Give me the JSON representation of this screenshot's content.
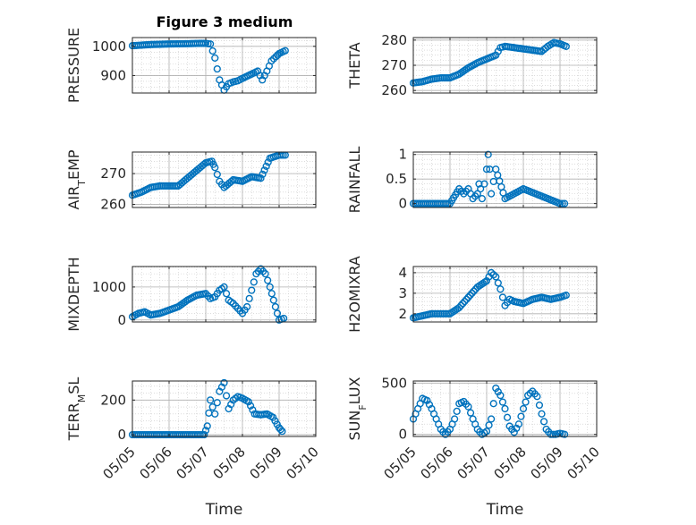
{
  "figure": {
    "title": "Figure 3 medium",
    "colors": {
      "marker": "#0072BD",
      "grid": "#c8c8c8",
      "axis": "#262626",
      "background": "#ffffff"
    }
  },
  "chart_data": [
    {
      "type": "scatter",
      "marker": "circle-open",
      "grid": true,
      "title": "Figure 3 medium",
      "ylabel": "PRESSURE",
      "xlabel": "",
      "xlim": [
        "05/05",
        "05/10"
      ],
      "ylim": [
        840,
        1030
      ],
      "xticks": [
        "05/05",
        "05/06",
        "05/07",
        "05/08",
        "05/09",
        "05/10"
      ],
      "xtick_labels_shown": false,
      "yticks": [
        900,
        1000
      ],
      "ytick_labels": [
        "900",
        "1000"
      ],
      "series": [
        {
          "x": [
            "05/05 00:00",
            "05/05 12:00",
            "05/06 00:00",
            "05/06 12:00",
            "05/06 20:00",
            "05/07 00:00",
            "05/07 03:00",
            "05/07 06:00",
            "05/07 09:00",
            "05/07 12:00",
            "05/07 15:00",
            "05/07 18:00",
            "05/07 21:00",
            "05/08 00:00",
            "05/08 06:00",
            "05/08 10:00",
            "05/08 13:00",
            "05/08 16:00",
            "05/08 19:00",
            "05/08 22:00",
            "05/09 00:00",
            "05/09 04:00"
          ],
          "y": [
            1002,
            1006,
            1008,
            1009,
            1010,
            1010,
            1008,
            960,
            885,
            850,
            872,
            878,
            882,
            890,
            905,
            915,
            885,
            915,
            950,
            965,
            975,
            985
          ]
        }
      ]
    },
    {
      "type": "scatter",
      "marker": "circle-open",
      "grid": true,
      "ylabel": "THETA",
      "xlabel": "",
      "xlim": [
        "05/05",
        "05/10"
      ],
      "ylim": [
        259,
        281
      ],
      "xticks": [
        "05/05",
        "05/06",
        "05/07",
        "05/08",
        "05/09",
        "05/10"
      ],
      "xtick_labels_shown": false,
      "yticks": [
        260,
        270,
        280
      ],
      "ytick_labels": [
        "260",
        "270",
        "280"
      ],
      "series": [
        {
          "x": [
            "05/05 00:00",
            "05/05 06:00",
            "05/05 12:00",
            "05/05 18:00",
            "05/06 00:00",
            "05/06 06:00",
            "05/06 12:00",
            "05/06 18:00",
            "05/07 00:00",
            "05/07 06:00",
            "05/07 09:00",
            "05/07 12:00",
            "05/07 18:00",
            "05/08 00:00",
            "05/08 06:00",
            "05/08 12:00",
            "05/08 16:00",
            "05/08 20:00",
            "05/09 00:00",
            "05/09 04:00"
          ],
          "y": [
            263,
            263.5,
            264.5,
            265,
            265,
            266.5,
            269,
            271,
            272.5,
            274,
            277,
            277.5,
            277,
            276.5,
            276,
            275.5,
            277.5,
            279,
            278.5,
            277.5
          ]
        }
      ]
    },
    {
      "type": "scatter",
      "marker": "circle-open",
      "grid": true,
      "ylabel": "AIR_TEMP",
      "xlabel": "",
      "xlim": [
        "05/05",
        "05/10"
      ],
      "ylim": [
        259,
        277
      ],
      "xticks": [
        "05/05",
        "05/06",
        "05/07",
        "05/08",
        "05/09",
        "05/10"
      ],
      "xtick_labels_shown": false,
      "yticks": [
        260,
        270
      ],
      "ytick_labels": [
        "260",
        "270"
      ],
      "series": [
        {
          "x": [
            "05/05 00:00",
            "05/05 06:00",
            "05/05 12:00",
            "05/05 18:00",
            "05/06 00:00",
            "05/06 06:00",
            "05/06 12:00",
            "05/06 18:00",
            "05/07 00:00",
            "05/07 04:00",
            "05/07 06:00",
            "05/07 09:00",
            "05/07 12:00",
            "05/07 18:00",
            "05/08 00:00",
            "05/08 06:00",
            "05/08 12:00",
            "05/08 18:00",
            "05/09 00:00",
            "05/09 04:00"
          ],
          "y": [
            263,
            264,
            265.5,
            266,
            266,
            266,
            268.5,
            271,
            273.5,
            274,
            272,
            267.5,
            265.5,
            268,
            267.5,
            269,
            268.5,
            275,
            276,
            276
          ]
        }
      ]
    },
    {
      "type": "scatter",
      "marker": "circle-open",
      "grid": true,
      "ylabel": "RAINFALL",
      "xlabel": "",
      "xlim": [
        "05/05",
        "05/10"
      ],
      "ylim": [
        -0.08,
        1.05
      ],
      "xticks": [
        "05/05",
        "05/06",
        "05/07",
        "05/08",
        "05/09",
        "05/10"
      ],
      "xtick_labels_shown": false,
      "yticks": [
        0,
        0.5,
        1
      ],
      "ytick_labels": [
        "0",
        "0.5",
        "1"
      ],
      "series": [
        {
          "x": [
            "05/05 00:00",
            "05/06 00:00",
            "05/06 06:00",
            "05/06 09:00",
            "05/06 12:00",
            "05/06 15:00",
            "05/06 18:00",
            "05/06 19:00",
            "05/06 20:00",
            "05/06 21:00",
            "05/07 00:00",
            "05/07 01:00",
            "05/07 02:00",
            "05/07 03:00",
            "05/07 06:00",
            "05/07 12:00",
            "05/08 00:00",
            "05/09 00:00",
            "05/09 03:00"
          ],
          "y": [
            0,
            0,
            0.3,
            0.2,
            0.3,
            0.1,
            0.2,
            0.4,
            0.3,
            0.1,
            0.7,
            1.0,
            0.7,
            0.2,
            0.7,
            0.1,
            0.3,
            0,
            0
          ]
        }
      ]
    },
    {
      "type": "scatter",
      "marker": "circle-open",
      "grid": true,
      "ylabel": "MIXDEPTH",
      "xlabel": "",
      "xlim": [
        "05/05",
        "05/10"
      ],
      "ylim": [
        -60,
        1620
      ],
      "xticks": [
        "05/05",
        "05/06",
        "05/07",
        "05/08",
        "05/09",
        "05/10"
      ],
      "xtick_labels_shown": false,
      "yticks": [
        0,
        1000
      ],
      "ytick_labels": [
        "0",
        "1000"
      ],
      "series": [
        {
          "x": [
            "05/05 00:00",
            "05/05 04:00",
            "05/05 08:00",
            "05/05 12:00",
            "05/05 18:00",
            "05/06 00:00",
            "05/06 06:00",
            "05/06 12:00",
            "05/06 18:00",
            "05/07 00:00",
            "05/07 03:00",
            "05/07 06:00",
            "05/07 09:00",
            "05/07 12:00",
            "05/07 15:00",
            "05/07 18:00",
            "05/07 21:00",
            "05/08 00:00",
            "05/08 03:00",
            "05/08 06:00",
            "05/08 09:00",
            "05/08 12:00",
            "05/08 15:00",
            "05/08 18:00",
            "05/09 00:00",
            "05/09 03:00"
          ],
          "y": [
            100,
            200,
            250,
            150,
            200,
            300,
            400,
            600,
            750,
            800,
            650,
            700,
            900,
            1000,
            600,
            500,
            350,
            200,
            400,
            900,
            1400,
            1550,
            1400,
            1000,
            0,
            50
          ]
        }
      ]
    },
    {
      "type": "scatter",
      "marker": "circle-open",
      "grid": true,
      "ylabel": "H2OMIXRA",
      "xlabel": "",
      "xlim": [
        "05/05",
        "05/10"
      ],
      "ylim": [
        1.6,
        4.3
      ],
      "xticks": [
        "05/05",
        "05/06",
        "05/07",
        "05/08",
        "05/09",
        "05/10"
      ],
      "xtick_labels_shown": false,
      "yticks": [
        2,
        3,
        4
      ],
      "ytick_labels": [
        "2",
        "3",
        "4"
      ],
      "series": [
        {
          "x": [
            "05/05 00:00",
            "05/05 06:00",
            "05/05 12:00",
            "05/05 18:00",
            "05/06 00:00",
            "05/06 06:00",
            "05/06 12:00",
            "05/06 18:00",
            "05/07 00:00",
            "05/07 03:00",
            "05/07 06:00",
            "05/07 09:00",
            "05/07 12:00",
            "05/07 15:00",
            "05/07 18:00",
            "05/08 00:00",
            "05/08 06:00",
            "05/08 12:00",
            "05/08 18:00",
            "05/09 00:00",
            "05/09 04:00"
          ],
          "y": [
            1.8,
            1.9,
            2.0,
            2.0,
            2.0,
            2.3,
            2.8,
            3.3,
            3.6,
            4.0,
            3.8,
            3.2,
            2.4,
            2.7,
            2.6,
            2.5,
            2.7,
            2.8,
            2.7,
            2.8,
            2.9
          ]
        }
      ]
    },
    {
      "type": "scatter",
      "marker": "circle-open",
      "grid": true,
      "ylabel": "TERR_MSL",
      "xlabel": "Time",
      "xlim": [
        "05/05",
        "05/10"
      ],
      "ylim": [
        -10,
        310
      ],
      "xticks": [
        "05/05",
        "05/06",
        "05/07",
        "05/08",
        "05/09",
        "05/10"
      ],
      "xtick_labels": [
        "05/05",
        "05/06",
        "05/07",
        "05/08",
        "05/09",
        "05/10"
      ],
      "xtick_labels_shown": true,
      "yticks": [
        0,
        200
      ],
      "ytick_labels": [
        "0",
        "200"
      ],
      "series": [
        {
          "x": [
            "05/05 00:00",
            "05/06 00:00",
            "05/06 23:00",
            "05/07 01:00",
            "05/07 03:00",
            "05/07 06:00",
            "05/07 09:00",
            "05/07 12:00",
            "05/07 15:00",
            "05/07 18:00",
            "05/07 21:00",
            "05/08 00:00",
            "05/08 04:00",
            "05/08 08:00",
            "05/08 12:00",
            "05/08 16:00",
            "05/08 20:00",
            "05/09 00:00",
            "05/09 02:00"
          ],
          "y": [
            0,
            0,
            0,
            50,
            200,
            120,
            250,
            300,
            150,
            200,
            220,
            210,
            190,
            120,
            115,
            120,
            100,
            40,
            20
          ]
        }
      ]
    },
    {
      "type": "scatter",
      "marker": "circle-open",
      "grid": true,
      "ylabel": "SUN_FLUX",
      "xlabel": "Time",
      "xlim": [
        "05/05",
        "05/10"
      ],
      "ylim": [
        -20,
        520
      ],
      "xticks": [
        "05/05",
        "05/06",
        "05/07",
        "05/08",
        "05/09",
        "05/10"
      ],
      "xtick_labels": [
        "05/05",
        "05/06",
        "05/07",
        "05/08",
        "05/09",
        "05/10"
      ],
      "xtick_labels_shown": true,
      "yticks": [
        0,
        500
      ],
      "ytick_labels": [
        "0",
        "500"
      ],
      "series": [
        {
          "x": [
            "05/05 00:00",
            "05/05 03:00",
            "05/05 06:00",
            "05/05 09:00",
            "05/05 12:00",
            "05/05 15:00",
            "05/05 18:00",
            "05/05 21:00",
            "05/06 00:00",
            "05/06 03:00",
            "05/06 06:00",
            "05/06 09:00",
            "05/06 12:00",
            "05/06 15:00",
            "05/06 18:00",
            "05/06 21:00",
            "05/07 00:00",
            "05/07 03:00",
            "05/07 06:00",
            "05/07 09:00",
            "05/07 12:00",
            "05/07 15:00",
            "05/07 18:00",
            "05/07 21:00",
            "05/08 00:00",
            "05/08 03:00",
            "05/08 06:00",
            "05/08 09:00",
            "05/08 12:00",
            "05/08 15:00",
            "05/08 18:00",
            "05/08 21:00",
            "05/09 00:00",
            "05/09 03:00"
          ],
          "y": [
            150,
            250,
            350,
            330,
            250,
            150,
            50,
            0,
            50,
            150,
            300,
            320,
            270,
            150,
            50,
            0,
            30,
            150,
            450,
            380,
            250,
            80,
            20,
            100,
            250,
            380,
            420,
            370,
            200,
            50,
            0,
            0,
            10,
            0
          ]
        }
      ]
    }
  ]
}
